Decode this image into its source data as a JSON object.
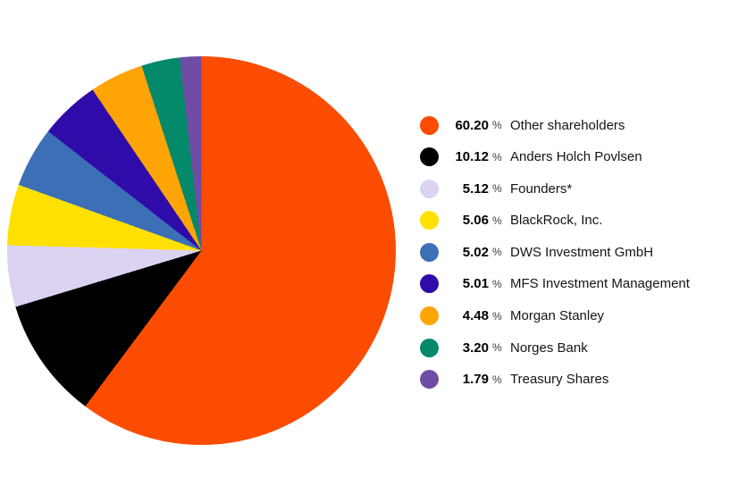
{
  "chart_data": {
    "type": "pie",
    "unit": "%",
    "start_angle_deg": 0,
    "direction": "clockwise",
    "legend_position": "right",
    "percent_symbol": "%",
    "slices": [
      {
        "label": "Other shareholders",
        "value": 60.2,
        "display": "60.20",
        "color": "#FC4C02"
      },
      {
        "label": "Anders Holch Povlsen",
        "value": 10.12,
        "display": "10.12",
        "color": "#000000"
      },
      {
        "label": "Founders*",
        "value": 5.12,
        "display": "5.12",
        "color": "#DCD2F2"
      },
      {
        "label": "BlackRock, Inc.",
        "value": 5.06,
        "display": "5.06",
        "color": "#FFE000"
      },
      {
        "label": "DWS Investment GmbH",
        "value": 5.02,
        "display": "5.02",
        "color": "#3C6FB6"
      },
      {
        "label": "MFS Investment Management",
        "value": 5.01,
        "display": "5.01",
        "color": "#2F0BAA"
      },
      {
        "label": "Morgan Stanley",
        "value": 4.48,
        "display": "4.48",
        "color": "#FFA405"
      },
      {
        "label": "Norges Bank",
        "value": 3.2,
        "display": "3.20",
        "color": "#048A6A"
      },
      {
        "label": "Treasury Shares",
        "value": 1.79,
        "display": "1.79",
        "color": "#6F4DA4"
      }
    ]
  }
}
